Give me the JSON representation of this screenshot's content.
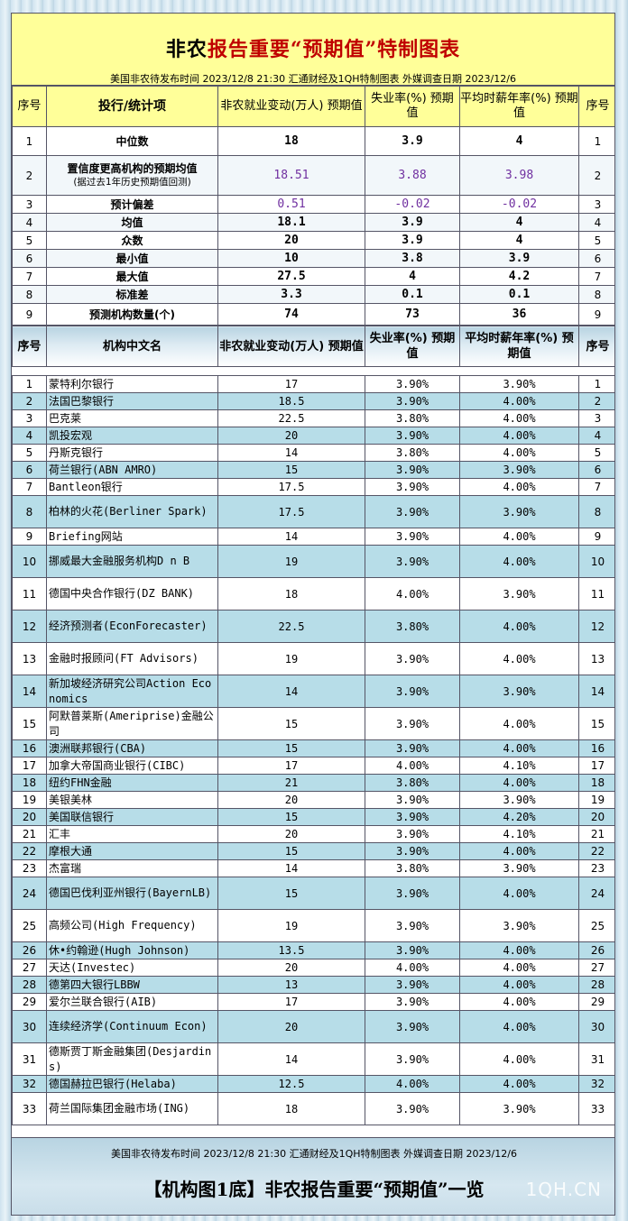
{
  "header": {
    "title_a": "非农",
    "title_b": "报告重要“预期值”特制图表",
    "subline": "美国非农待发布时间 2023/12/8 21:30  汇通财经及1QH特制图表  外媒调查日期 2023/12/6"
  },
  "summary_headers": {
    "seq": "序号",
    "item": "投行/统计项",
    "nfp": "非农就业变动(万人) 预期值",
    "unemp": "失业率(%) 预期值",
    "wage": "平均时薪年率(%) 预期值",
    "seq2": "序号"
  },
  "summary_rows": [
    {
      "no": "1",
      "name": "中位数",
      "nfp": "18",
      "unemp": "3.9",
      "wage": "4"
    },
    {
      "no": "2",
      "name": "置信度更高机构的预期均值",
      "note": "(据过去1年历史预期值回测)",
      "nfp": "18.51",
      "unemp": "3.88",
      "wage": "3.98"
    },
    {
      "no": "3",
      "name": "预计偏差",
      "nfp": "0.51",
      "unemp": "-0.02",
      "wage": "-0.02"
    },
    {
      "no": "4",
      "name": "均值",
      "nfp": "18.1",
      "unemp": "3.9",
      "wage": "4"
    },
    {
      "no": "5",
      "name": "众数",
      "nfp": "20",
      "unemp": "3.9",
      "wage": "4"
    },
    {
      "no": "6",
      "name": "最小值",
      "nfp": "10",
      "unemp": "3.8",
      "wage": "3.9"
    },
    {
      "no": "7",
      "name": "最大值",
      "nfp": "27.5",
      "unemp": "4",
      "wage": "4.2"
    },
    {
      "no": "8",
      "name": "标准差",
      "nfp": "3.3",
      "unemp": "0.1",
      "wage": "0.1"
    },
    {
      "no": "9",
      "name": "预测机构数量(个)",
      "nfp": "74",
      "unemp": "73",
      "wage": "36"
    }
  ],
  "inst_headers": {
    "seq": "序号",
    "name": "机构中文名",
    "nfp": "非农就业变动(万人) 预期值",
    "unemp": "失业率(%) 预期值",
    "wage": "平均时薪年率(%) 预期值",
    "seq2": "序号"
  },
  "institutions": [
    {
      "no": "1",
      "name": "蒙特利尔银行",
      "nfp": "17",
      "unemp": "3.90%",
      "wage": "3.90%"
    },
    {
      "no": "2",
      "name": "法国巴黎银行",
      "nfp": "18.5",
      "unemp": "3.90%",
      "wage": "4.00%"
    },
    {
      "no": "3",
      "name": "巴克莱",
      "nfp": "22.5",
      "unemp": "3.80%",
      "wage": "4.00%"
    },
    {
      "no": "4",
      "name": "凯投宏观",
      "nfp": "20",
      "unemp": "3.90%",
      "wage": "4.00%"
    },
    {
      "no": "5",
      "name": "丹斯克银行",
      "nfp": "14",
      "unemp": "3.80%",
      "wage": "4.00%"
    },
    {
      "no": "6",
      "name": "荷兰银行(ABN AMRO)",
      "nfp": "15",
      "unemp": "3.90%",
      "wage": "3.90%"
    },
    {
      "no": "7",
      "name": "Bantleon银行",
      "nfp": "17.5",
      "unemp": "3.90%",
      "wage": "4.00%"
    },
    {
      "no": "8",
      "name": "柏林的火花(Berliner Spark)",
      "nfp": "17.5",
      "unemp": "3.90%",
      "wage": "3.90%"
    },
    {
      "no": "9",
      "name": "Briefing网站",
      "nfp": "14",
      "unemp": "3.90%",
      "wage": "4.00%"
    },
    {
      "no": "10",
      "name": "挪威最大金融服务机构D n B",
      "nfp": "19",
      "unemp": "3.90%",
      "wage": "4.00%"
    },
    {
      "no": "11",
      "name": "德国中央合作银行(DZ BANK)",
      "nfp": "18",
      "unemp": "4.00%",
      "wage": "3.90%"
    },
    {
      "no": "12",
      "name": "经济预测者(EconForecaster)",
      "nfp": "22.5",
      "unemp": "3.80%",
      "wage": "4.00%"
    },
    {
      "no": "13",
      "name": "金融时报顾问(FT Advisors)",
      "nfp": "19",
      "unemp": "3.90%",
      "wage": "4.00%"
    },
    {
      "no": "14",
      "name": "新加坡经济研究公司Action Economics",
      "nfp": "14",
      "unemp": "3.90%",
      "wage": "3.90%"
    },
    {
      "no": "15",
      "name": "阿默普莱斯(Ameriprise)金融公司",
      "nfp": "15",
      "unemp": "3.90%",
      "wage": "4.00%"
    },
    {
      "no": "16",
      "name": "澳洲联邦银行(CBA)",
      "nfp": "15",
      "unemp": "3.90%",
      "wage": "4.00%"
    },
    {
      "no": "17",
      "name": "加拿大帝国商业银行(CIBC)",
      "nfp": "17",
      "unemp": "4.00%",
      "wage": "4.10%"
    },
    {
      "no": "18",
      "name": "纽约FHN金融",
      "nfp": "21",
      "unemp": "3.80%",
      "wage": "4.00%"
    },
    {
      "no": "19",
      "name": "美银美林",
      "nfp": "20",
      "unemp": "3.90%",
      "wage": "3.90%"
    },
    {
      "no": "20",
      "name": "美国联信银行",
      "nfp": "15",
      "unemp": "3.90%",
      "wage": "4.20%"
    },
    {
      "no": "21",
      "name": "汇丰",
      "nfp": "20",
      "unemp": "3.90%",
      "wage": "4.10%"
    },
    {
      "no": "22",
      "name": "摩根大通",
      "nfp": "15",
      "unemp": "3.90%",
      "wage": "4.00%"
    },
    {
      "no": "23",
      "name": "杰富瑞",
      "nfp": "14",
      "unemp": "3.80%",
      "wage": "3.90%"
    },
    {
      "no": "24",
      "name": "德国巴伐利亚州银行(BayernLB)",
      "nfp": "15",
      "unemp": "3.90%",
      "wage": "4.00%"
    },
    {
      "no": "25",
      "name": "高频公司(High Frequency)",
      "nfp": "19",
      "unemp": "3.90%",
      "wage": "3.90%"
    },
    {
      "no": "26",
      "name": "休•约翰逊(Hugh Johnson)",
      "nfp": "13.5",
      "unemp": "3.90%",
      "wage": "4.00%"
    },
    {
      "no": "27",
      "name": "天达(Investec)",
      "nfp": "20",
      "unemp": "4.00%",
      "wage": "4.00%"
    },
    {
      "no": "28",
      "name": "德第四大银行LBBW",
      "nfp": "13",
      "unemp": "3.90%",
      "wage": "4.00%"
    },
    {
      "no": "29",
      "name": "爱尔兰联合银行(AIB)",
      "nfp": "17",
      "unemp": "3.90%",
      "wage": "4.00%"
    },
    {
      "no": "30",
      "name": "连续经济学(Continuum Econ)",
      "nfp": "20",
      "unemp": "3.90%",
      "wage": "4.00%"
    },
    {
      "no": "31",
      "name": "德斯贾丁斯金融集团(Desjardins)",
      "nfp": "14",
      "unemp": "3.90%",
      "wage": "4.00%"
    },
    {
      "no": "32",
      "name": "德国赫拉巴银行(Helaba)",
      "nfp": "12.5",
      "unemp": "4.00%",
      "wage": "4.00%"
    },
    {
      "no": "33",
      "name": "荷兰国际集团金融市场(ING)",
      "nfp": "18",
      "unemp": "3.90%",
      "wage": "3.90%"
    }
  ],
  "footer": {
    "subline": "美国非农待发布时间 2023/12/8 21:30  汇通财经及1QH特制图表  外媒调查日期 2023/12/6",
    "title": "【机构图1底】非农报告重要“预期值”一览",
    "watermark": "1QH.CN"
  }
}
